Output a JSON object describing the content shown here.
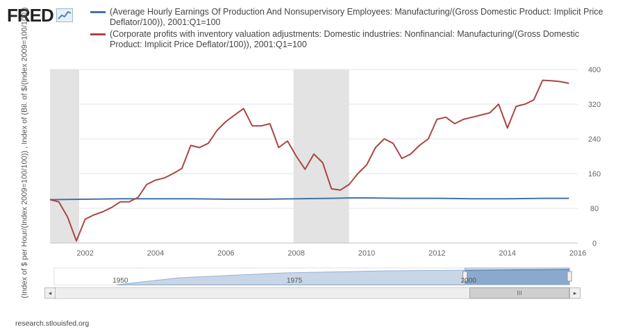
{
  "brand": {
    "logo_text": "FRED",
    "logo_icon": "chart-line-icon"
  },
  "legend": [
    {
      "label": "(Average Hourly Earnings Of Production And Nonsupervisory Employees: Manufacturing/(Gross Domestic Product: Implicit Price Deflator/100)), 2001:Q1=100",
      "color": "#4572a7"
    },
    {
      "label": "(Corporate profits with inventory valuation adjustments: Domestic industries: Nonfinancial: Manufacturing/(Gross Domestic Product: Implicit Price Deflator/100)), 2001:Q1=100",
      "color": "#aa4643"
    }
  ],
  "footer": {
    "source": "research.stlouisfed.org"
  },
  "navigator": {
    "ticks": [
      "1950",
      "1975",
      "2000"
    ],
    "left_arrow": "◂",
    "right_arrow": "▸",
    "thumb_grip": "III"
  },
  "chart_data": {
    "type": "line",
    "title": "",
    "xlabel": "",
    "ylabel": "(Index of $ per Hour/(Index 2009=100/100)) , Index of (Bil. of $/(Index 2009=100/100))",
    "xlim": [
      2001.0,
      2016.0
    ],
    "ylim": [
      0,
      400
    ],
    "x_ticks": [
      2002,
      2004,
      2006,
      2008,
      2010,
      2012,
      2014,
      2016
    ],
    "y_ticks": [
      0,
      80,
      160,
      240,
      320,
      400
    ],
    "y_axis_side": "right",
    "grid": true,
    "recessions": [
      [
        2001.0,
        2001.83
      ],
      [
        2007.92,
        2009.5
      ]
    ],
    "series": [
      {
        "name": "(Average Hourly Earnings Of Production And Nonsupervisory Employees: Manufacturing/(Gross Domestic Product: Implicit Price Deflator/100)), 2001:Q1=100",
        "color": "#4572a7",
        "x": [
          2001.0,
          2002.0,
          2003.0,
          2004.0,
          2005.0,
          2006.0,
          2007.0,
          2008.0,
          2009.0,
          2009.5,
          2010.0,
          2011.0,
          2012.0,
          2013.0,
          2014.0,
          2015.0,
          2015.75
        ],
        "y": [
          100,
          101,
          102,
          102,
          102,
          101,
          101,
          102,
          103,
          104,
          104,
          103,
          103,
          102,
          102,
          103,
          103
        ]
      },
      {
        "name": "(Corporate profits with inventory valuation adjustments: Domestic industries: Nonfinancial: Manufacturing/(Gross Domestic Product: Implicit Price Deflator/100)), 2001:Q1=100",
        "color": "#aa4643",
        "x": [
          2001.0,
          2001.25,
          2001.5,
          2001.75,
          2002.0,
          2002.25,
          2002.5,
          2002.75,
          2003.0,
          2003.25,
          2003.5,
          2003.75,
          2004.0,
          2004.25,
          2004.5,
          2004.75,
          2005.0,
          2005.25,
          2005.5,
          2005.75,
          2006.0,
          2006.25,
          2006.5,
          2006.75,
          2007.0,
          2007.25,
          2007.5,
          2007.75,
          2008.0,
          2008.25,
          2008.5,
          2008.75,
          2009.0,
          2009.25,
          2009.5,
          2009.75,
          2010.0,
          2010.25,
          2010.5,
          2010.75,
          2011.0,
          2011.25,
          2011.5,
          2011.75,
          2012.0,
          2012.25,
          2012.5,
          2012.75,
          2013.0,
          2013.25,
          2013.5,
          2013.75,
          2014.0,
          2014.25,
          2014.5,
          2014.75,
          2015.0,
          2015.25,
          2015.5,
          2015.75
        ],
        "y": [
          100,
          95,
          60,
          5,
          55,
          65,
          72,
          82,
          95,
          95,
          105,
          135,
          145,
          150,
          160,
          172,
          225,
          220,
          230,
          260,
          280,
          295,
          310,
          270,
          270,
          275,
          220,
          235,
          200,
          170,
          205,
          185,
          125,
          122,
          135,
          160,
          180,
          220,
          240,
          230,
          195,
          205,
          225,
          240,
          285,
          290,
          275,
          285,
          290,
          295,
          300,
          320,
          265,
          315,
          320,
          330,
          375,
          374,
          372,
          368
        ]
      }
    ]
  }
}
